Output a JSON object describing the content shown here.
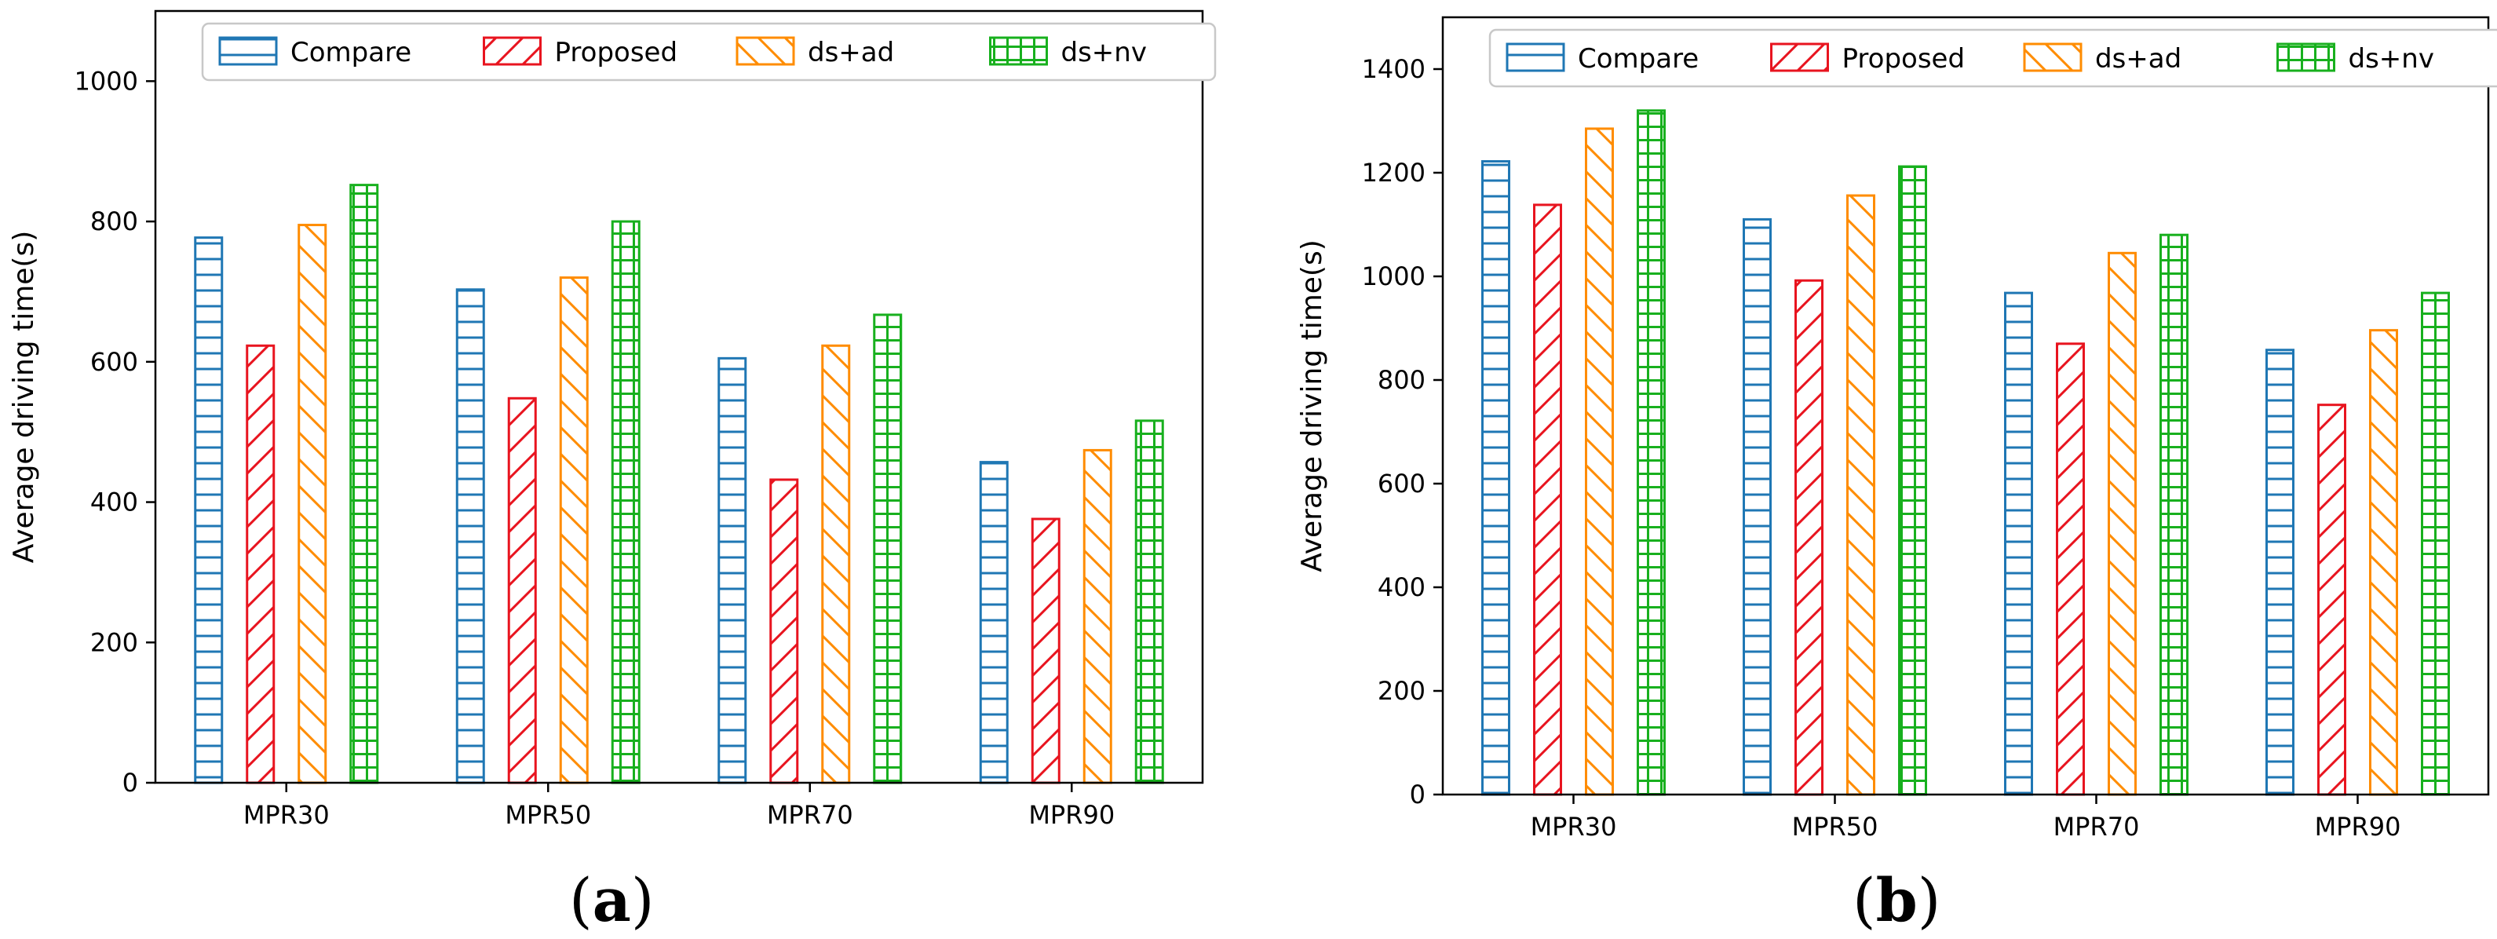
{
  "chart_data": [
    {
      "type": "bar",
      "panel": "a",
      "categories": [
        "MPR30",
        "MPR50",
        "MPR70",
        "MPR90"
      ],
      "series": [
        {
          "name": "Compare",
          "values": [
            777,
            703,
            605,
            457
          ]
        },
        {
          "name": "Proposed",
          "values": [
            623,
            548,
            432,
            376
          ]
        },
        {
          "name": "ds+ad",
          "values": [
            795,
            720,
            623,
            474
          ]
        },
        {
          "name": "ds+nv",
          "values": [
            852,
            800,
            667,
            516
          ]
        }
      ],
      "title": "",
      "xlabel": "",
      "ylabel": "Average driving time(s)",
      "ylim": [
        0,
        1100
      ],
      "yticks": [
        0,
        200,
        400,
        600,
        800,
        1000
      ],
      "legend": "top"
    },
    {
      "type": "bar",
      "panel": "b",
      "categories": [
        "MPR30",
        "MPR50",
        "MPR70",
        "MPR90"
      ],
      "series": [
        {
          "name": "Compare",
          "values": [
            1222,
            1110,
            968,
            858
          ]
        },
        {
          "name": "Proposed",
          "values": [
            1138,
            992,
            870,
            752
          ]
        },
        {
          "name": "ds+ad",
          "values": [
            1285,
            1156,
            1045,
            896
          ]
        },
        {
          "name": "ds+nv",
          "values": [
            1320,
            1212,
            1080,
            968
          ]
        }
      ],
      "title": "",
      "xlabel": "",
      "ylabel": "Average driving time(s)",
      "ylim": [
        0,
        1500
      ],
      "yticks": [
        0,
        200,
        400,
        600,
        800,
        1000,
        1200,
        1400
      ],
      "legend": "top"
    }
  ],
  "series_style": [
    {
      "name": "Compare",
      "color": "#1f77b4",
      "hatch": "horizontal-lines"
    },
    {
      "name": "Proposed",
      "color": "#e8141f",
      "hatch": "forward-diagonal"
    },
    {
      "name": "ds+ad",
      "color": "#ff8c00",
      "hatch": "back-diagonal"
    },
    {
      "name": "ds+nv",
      "color": "#18b01e",
      "hatch": "grid"
    }
  ],
  "labels": {
    "panel_a": "a",
    "panel_b": "b",
    "open": "(",
    "close": ")"
  }
}
